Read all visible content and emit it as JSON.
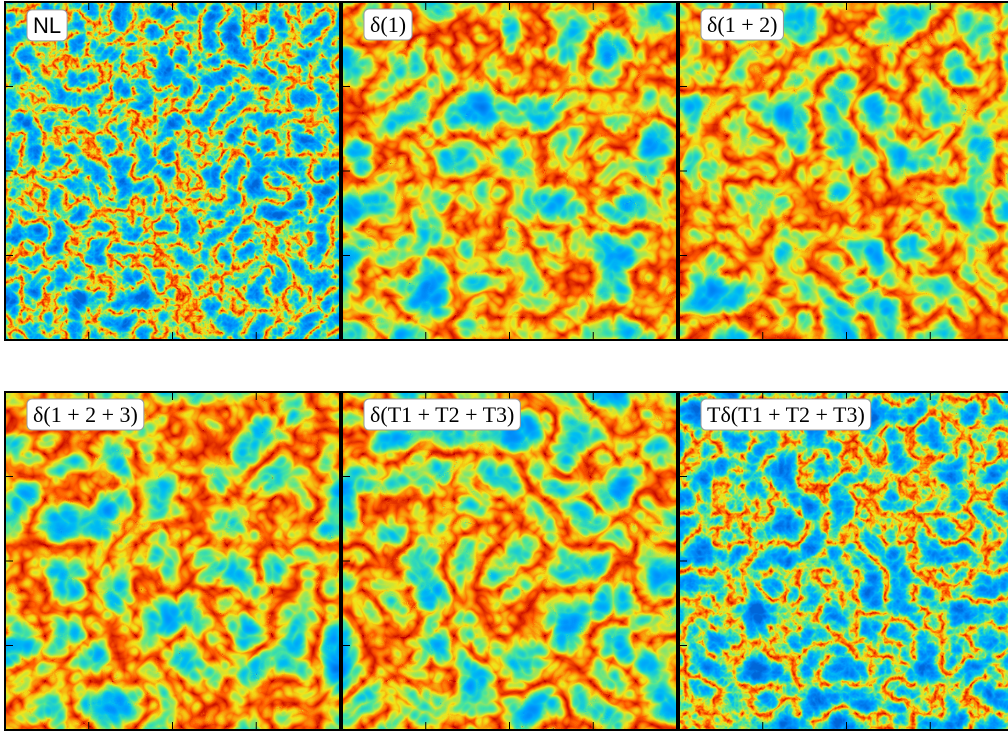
{
  "panels": [
    {
      "label": "NL"
    },
    {
      "label": "δ(1)"
    },
    {
      "label": "δ(1 + 2)"
    },
    {
      "label": "δ(1 + 2 + 3)"
    },
    {
      "label": "δ(T1 + T2 + T3)"
    },
    {
      "label": "Tδ(T1 + T2 + T3)"
    }
  ]
}
